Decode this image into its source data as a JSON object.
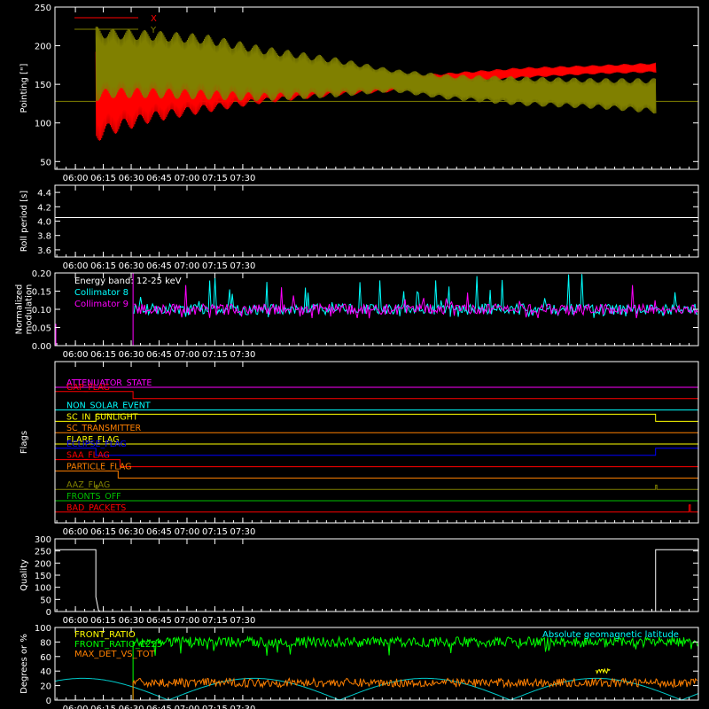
{
  "time_axis": {
    "ticks": [
      "06:00",
      "06:15",
      "06:30",
      "06:45",
      "07:00",
      "07:15",
      "07:30"
    ],
    "range_min": [
      349,
      695
    ]
  },
  "chart_data": [
    {
      "id": "pointing",
      "type": "line",
      "ylabel": "Pointing [\"]",
      "ylim": [
        40,
        250
      ],
      "yticks": [
        "50",
        "100",
        "150",
        "200",
        "250"
      ],
      "legend": [
        "X",
        "Y"
      ],
      "series": [
        {
          "name": "X",
          "color": "#ff0000",
          "band_start_min": 371,
          "band_end_min": 672,
          "env_x": [
            371,
            380,
            400,
            430,
            460,
            500,
            530,
            560,
            600,
            640,
            672
          ],
          "env_low": [
            75,
            85,
            100,
            113,
            125,
            135,
            140,
            150,
            158,
            163,
            165
          ],
          "env_high": [
            200,
            198,
            195,
            185,
            172,
            165,
            160,
            165,
            172,
            175,
            178
          ]
        },
        {
          "name": "Y",
          "color": "#808000",
          "band_start_min": 371,
          "band_end_min": 672,
          "env_x": [
            371,
            380,
            400,
            430,
            460,
            500,
            530,
            560,
            600,
            640,
            672
          ],
          "env_low": [
            128,
            132,
            132,
            130,
            128,
            133,
            140,
            130,
            122,
            118,
            112
          ],
          "env_high": [
            225,
            222,
            220,
            215,
            200,
            185,
            170,
            163,
            160,
            158,
            158
          ]
        }
      ],
      "baseline": 128
    },
    {
      "id": "roll",
      "type": "line",
      "ylabel": "Roll period [s]",
      "ylim": [
        3.5,
        4.5
      ],
      "yticks": [
        "3.6",
        "3.8",
        "4.0",
        "4.2",
        "4.4"
      ],
      "value": 4.05
    },
    {
      "id": "modulation",
      "type": "line",
      "ylabel": [
        "Normalized",
        "modulation"
      ],
      "ylim": [
        0,
        0.2
      ],
      "yticks": [
        "0.00",
        "0.05",
        "0.10",
        "0.15",
        "0.20"
      ],
      "annotation": "Energy band: 12-25 keV",
      "legend": [
        "Collimator 8",
        "Collimator 9"
      ],
      "colors": [
        "#00ffff",
        "#ff00ff"
      ],
      "start_min": 391,
      "mean": 0.1
    },
    {
      "id": "flags",
      "type": "line",
      "ylabel": "Flags",
      "flags": [
        {
          "name": "ATTENUATOR_STATE",
          "color": "#ff00ff",
          "steps": []
        },
        {
          "name": "GAP_FLAG",
          "color": "#ff0000",
          "steps": [
            [
              391,
              -1
            ]
          ]
        },
        {
          "name": "NON_SOLAR_EVENT",
          "color": "#00ffff",
          "steps": []
        },
        {
          "name": "SC_IN_SUNLIGHT",
          "color": "#ffff00",
          "steps": [
            [
              371,
              1
            ],
            [
              672,
              -1
            ]
          ]
        },
        {
          "name": "SC_TRANSMITTER",
          "color": "#ff8000",
          "steps": []
        },
        {
          "name": "FLARE_FLAG",
          "color": "#ffff00",
          "steps": []
        },
        {
          "name": "ECLIPSE_FLAG",
          "color": "#0000ff",
          "steps": [
            [
              371,
              -1
            ],
            [
              672,
              1
            ]
          ]
        },
        {
          "name": "SAA_FLAG",
          "color": "#ff0000",
          "steps": [
            [
              384,
              -1
            ]
          ]
        },
        {
          "name": "PARTICLE_FLAG",
          "color": "#ff8000",
          "steps": [
            [
              383,
              -1
            ]
          ]
        },
        {
          "name": "AAZ_FLAG",
          "color": "#808000",
          "pulses": [
            371,
            672
          ]
        },
        {
          "name": "FRONTS_OFF",
          "color": "#00c000",
          "steps": []
        },
        {
          "name": "BAD_PACKETS",
          "color": "#ff0000",
          "pulses": [
            690
          ]
        }
      ]
    },
    {
      "id": "quality",
      "type": "line",
      "ylabel": "Quality",
      "ylim": [
        0,
        300
      ],
      "yticks": [
        "0",
        "50",
        "100",
        "150",
        "200",
        "250",
        "300"
      ],
      "value_high": 255,
      "drop_min": 371,
      "rise_min": 672
    },
    {
      "id": "ratios",
      "type": "line",
      "ylabel": "Degrees or %",
      "ylim": [
        0,
        100
      ],
      "yticks": [
        "0",
        "20",
        "40",
        "60",
        "80",
        "100"
      ],
      "legend": [
        "FRONT_RATIO",
        "FRONT_RATIO_1225",
        "MAX_DET_VS_TOT"
      ],
      "legend_colors": [
        "#ffff00",
        "#00ff00",
        "#ff8000"
      ],
      "annotation": "Absolute geomagnetic latitude",
      "annotation_color": "#00ffff",
      "start_min": 391,
      "front_ratio_1225_mean": 80,
      "max_det_mean": 24
    }
  ]
}
